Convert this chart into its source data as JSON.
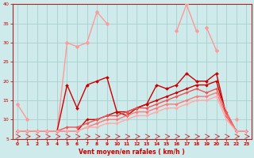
{
  "background_color": "#ceeaea",
  "grid_color": "#aacfcf",
  "xlabel": "Vent moyen/en rafales ( km/h )",
  "xlim": [
    -0.5,
    23.5
  ],
  "ylim": [
    5,
    40
  ],
  "yticks": [
    5,
    10,
    15,
    20,
    25,
    30,
    35,
    40
  ],
  "xticks": [
    0,
    1,
    2,
    3,
    4,
    5,
    6,
    7,
    8,
    9,
    10,
    11,
    12,
    13,
    14,
    15,
    16,
    17,
    18,
    19,
    20,
    21,
    22,
    23
  ],
  "series": [
    {
      "segments": [
        {
          "x": [
            0,
            1,
            2,
            3,
            4,
            5,
            6,
            7,
            8,
            9
          ],
          "y": [
            7,
            7,
            7,
            7,
            7,
            30,
            29,
            30,
            38,
            35
          ]
        },
        {
          "x": [
            16,
            17,
            18
          ],
          "y": [
            33,
            40,
            33
          ]
        }
      ],
      "color": "#ff9999",
      "linewidth": 1.0,
      "marker": "D",
      "markersize": 2.5
    },
    {
      "segments": [
        {
          "x": [
            0,
            1
          ],
          "y": [
            14,
            10
          ]
        },
        {
          "x": [
            19,
            20
          ],
          "y": [
            34,
            28
          ]
        },
        {
          "x": [
            22
          ],
          "y": [
            10
          ]
        }
      ],
      "color": "#ff9999",
      "linewidth": 1.0,
      "marker": "D",
      "markersize": 2.5
    },
    {
      "segments": [
        {
          "x": [
            0,
            1,
            2,
            3,
            4,
            5,
            6,
            7,
            8,
            9,
            10,
            11,
            12,
            13,
            14,
            15,
            16,
            17,
            18,
            19,
            20,
            21,
            22,
            23
          ],
          "y": [
            7,
            7,
            7,
            7,
            7,
            19,
            13,
            19,
            20,
            21,
            12,
            11,
            13,
            14,
            19,
            18,
            19,
            22,
            20,
            20,
            22,
            11,
            7,
            7
          ]
        }
      ],
      "color": "#cc0000",
      "linewidth": 1.0,
      "marker": "D",
      "markersize": 2.0
    },
    {
      "segments": [
        {
          "x": [
            0,
            1,
            2,
            3,
            4,
            5,
            6,
            7,
            8,
            9,
            10,
            11,
            12,
            13,
            14,
            15,
            16,
            17,
            18,
            19,
            20,
            21,
            22,
            23
          ],
          "y": [
            7,
            7,
            7,
            7,
            7,
            7,
            7,
            10,
            10,
            11,
            12,
            12,
            13,
            14,
            15,
            16,
            17,
            18,
            19,
            19,
            20,
            11,
            7,
            7
          ]
        }
      ],
      "color": "#cc0000",
      "linewidth": 1.0,
      "marker": "D",
      "markersize": 1.8
    },
    {
      "segments": [
        {
          "x": [
            0,
            1,
            2,
            3,
            4,
            5,
            6,
            7,
            8,
            9,
            10,
            11,
            12,
            13,
            14,
            15,
            16,
            17,
            18,
            19,
            20,
            21,
            22,
            23
          ],
          "y": [
            7,
            7,
            7,
            7,
            7,
            8,
            8,
            9,
            10,
            11,
            11,
            12,
            13,
            13,
            14,
            15,
            16,
            17,
            18,
            17,
            18,
            12,
            7,
            7
          ]
        }
      ],
      "color": "#ee5555",
      "linewidth": 1.0,
      "marker": "D",
      "markersize": 1.8
    },
    {
      "segments": [
        {
          "x": [
            0,
            1,
            2,
            3,
            4,
            5,
            6,
            7,
            8,
            9,
            10,
            11,
            12,
            13,
            14,
            15,
            16,
            17,
            18,
            19,
            20,
            21,
            22,
            23
          ],
          "y": [
            7,
            7,
            7,
            7,
            7,
            7,
            7,
            8,
            9,
            10,
            10,
            11,
            12,
            12,
            13,
            14,
            14,
            15,
            16,
            16,
            17,
            11,
            7,
            7
          ]
        }
      ],
      "color": "#ff7777",
      "linewidth": 1.0,
      "marker": "D",
      "markersize": 1.8
    },
    {
      "segments": [
        {
          "x": [
            0,
            1,
            2,
            3,
            4,
            5,
            6,
            7,
            8,
            9,
            10,
            11,
            12,
            13,
            14,
            15,
            16,
            17,
            18,
            19,
            20,
            21,
            22,
            23
          ],
          "y": [
            7,
            7,
            7,
            7,
            7,
            7,
            7,
            8,
            8,
            9,
            9,
            10,
            11,
            11,
            12,
            13,
            13,
            14,
            15,
            15,
            16,
            10,
            7,
            7
          ]
        }
      ],
      "color": "#ffaaaa",
      "linewidth": 1.0,
      "marker": "D",
      "markersize": 1.8
    }
  ],
  "arrow_color": "#cc3333"
}
